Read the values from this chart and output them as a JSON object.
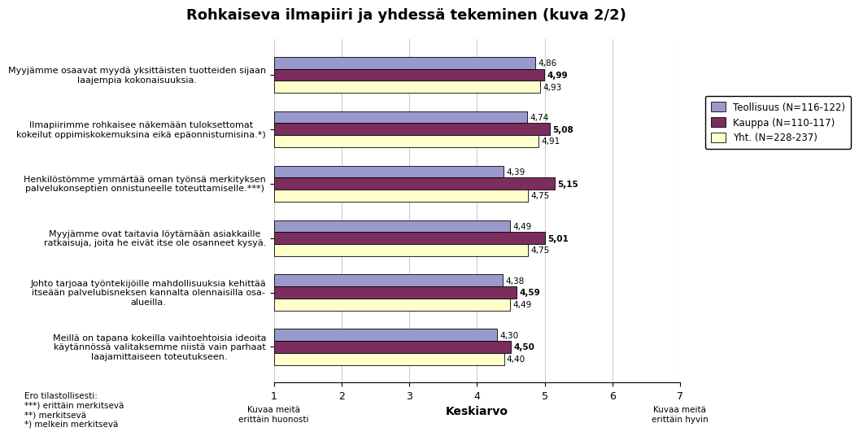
{
  "title": "Rohkaiseva ilmapiiri ja yhdessä tekeminen (kuva 2/2)",
  "categories": [
    "Myyjämme osaavat myydä yksittäisten tuotteiden sijaan\nlaajempia kokonaisuuksia.",
    "Ilmapiirimme rohkaisee näkemään tuloksettomat\nkokeilut oppimiskokemuksina eikä epäonnistumisina.*)",
    "Henkilöstömme ymmärtää oman työnsä merkityksen\npalvelukonseptien onnistuneelle toteuttamiselle.***)",
    "Myyjämme ovat taitavia löytämään asiakkaille\nratkaisuja, joita he eivät itse ole osanneet kysyä.",
    "Johto tarjoaa työntekijöille mahdollisuuksia kehittää\nitseään palvelubisneksen kannalta olennaisilla osa-\nalueilla.",
    "Meillä on tapana kokeilla vaihtoehtoisia ideoita\nkäytännössä valitaksemme niistä vain parhaat\nlaajamittaiseen toteutukseen."
  ],
  "series": [
    {
      "name": "Teollisuus (N=116-122)",
      "color": "#9999CC",
      "values": [
        4.86,
        4.74,
        4.39,
        4.49,
        4.38,
        4.3
      ]
    },
    {
      "name": "Kauppa (N=110-117)",
      "color": "#7B2D5E",
      "values": [
        4.99,
        5.08,
        5.15,
        5.01,
        4.59,
        4.5
      ]
    },
    {
      "name": "Yht. (N=228-237)",
      "color": "#FFFFCC",
      "values": [
        4.93,
        4.91,
        4.75,
        4.75,
        4.49,
        4.4
      ]
    }
  ],
  "xmin": 1,
  "xmax": 7,
  "xticks": [
    1,
    2,
    3,
    4,
    5,
    6,
    7
  ],
  "xlabel_left": "Kuvaa meitä\nerittäin huonosti",
  "xlabel_center": "Keskiarvo",
  "xlabel_right": "Kuvaa meitä\nerittäin hyvin",
  "footnote_line1": "Ero tilastollisesti:",
  "footnote_line2": "***) erittäin merkitsevä",
  "footnote_line3": "**) merkitsevä",
  "footnote_line4": "*) melkein merkitsevä",
  "background_color": "#FFFFFF",
  "bar_height": 0.22,
  "bar_edge_color": "#000000",
  "grid_color": "#CCCCCC"
}
